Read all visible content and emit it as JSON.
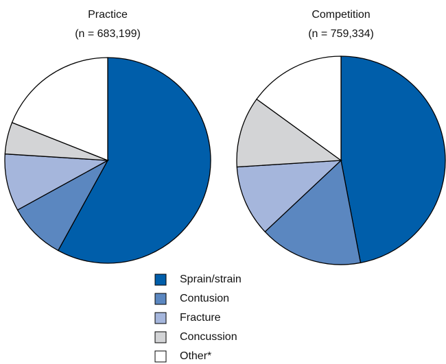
{
  "chart_data": [
    {
      "type": "pie",
      "title": "Practice",
      "subtitle": "(n = 683,199)",
      "categories": [
        "Sprain/strain",
        "Contusion",
        "Fracture",
        "Concussion",
        "Other*"
      ],
      "values": [
        58,
        9,
        9,
        5,
        19
      ],
      "colors": [
        "#005eaa",
        "#5b87c0",
        "#a5b6dc",
        "#d3d4d6",
        "#ffffff"
      ]
    },
    {
      "type": "pie",
      "title": "Competition",
      "subtitle": "(n = 759,334)",
      "categories": [
        "Sprain/strain",
        "Contusion",
        "Fracture",
        "Concussion",
        "Other*"
      ],
      "values": [
        47,
        16,
        11,
        11,
        15
      ],
      "colors": [
        "#005eaa",
        "#5b87c0",
        "#a5b6dc",
        "#d3d4d6",
        "#ffffff"
      ]
    }
  ]
}
